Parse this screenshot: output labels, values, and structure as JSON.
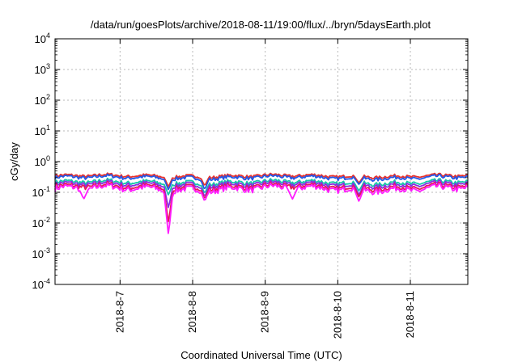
{
  "chart_data": {
    "type": "line",
    "title": "/data/run/goesPlots/archive/2018-08-11/19:00/flux/../bryn/5daysEarth.plot",
    "xlabel": "Coordinated Universal Time (UTC)",
    "ylabel": "cGy/day",
    "y_scale": "log",
    "ylim": [
      0.0001,
      10000
    ],
    "xlim": [
      "2018-08-06 02:30",
      "2018-08-11 19:00"
    ],
    "grid": true,
    "y_ticks": [
      {
        "base": "10",
        "exp": "-4",
        "value": 0.0001
      },
      {
        "base": "10",
        "exp": "-3",
        "value": 0.001
      },
      {
        "base": "10",
        "exp": "-2",
        "value": 0.01
      },
      {
        "base": "10",
        "exp": "-1",
        "value": 0.1
      },
      {
        "base": "10",
        "exp": "0",
        "value": 1
      },
      {
        "base": "10",
        "exp": "1",
        "value": 10
      },
      {
        "base": "10",
        "exp": "2",
        "value": 100
      },
      {
        "base": "10",
        "exp": "3",
        "value": 1000
      },
      {
        "base": "10",
        "exp": "4",
        "value": 10000
      }
    ],
    "x_ticks": [
      "2018-8-7",
      "2018-8-8",
      "2018-8-9",
      "2018-8-10",
      "2018-8-11"
    ],
    "x_tick_dates": [
      "2018-08-07 00:00",
      "2018-08-08 00:00",
      "2018-08-09 00:00",
      "2018-08-10 00:00",
      "2018-08-11 00:00"
    ],
    "series": [
      {
        "color": "#e8322d",
        "baseline": 0.34,
        "dips": [
          {
            "at": "2018-08-07 16:00",
            "value": 0.15
          },
          {
            "at": "2018-08-08 04:00",
            "value": 0.16
          },
          {
            "at": "2018-08-10 07:00",
            "value": 0.2
          }
        ]
      },
      {
        "color": "#2457e6",
        "baseline": 0.3,
        "dips": [
          {
            "at": "2018-08-07 16:00",
            "value": 0.12
          },
          {
            "at": "2018-08-08 04:00",
            "value": 0.12
          },
          {
            "at": "2018-08-10 07:00",
            "value": 0.18
          }
        ]
      },
      {
        "color": "#17c8a8",
        "baseline": 0.21,
        "dips": [
          {
            "at": "2018-08-07 16:00",
            "value": 0.08
          },
          {
            "at": "2018-08-08 04:00",
            "value": 0.09
          },
          {
            "at": "2018-08-10 07:00",
            "value": 0.11
          }
        ]
      },
      {
        "color": "#8a2be2",
        "baseline": 0.18,
        "dips": [
          {
            "at": "2018-08-07 16:00",
            "value": 0.03
          },
          {
            "at": "2018-08-08 04:00",
            "value": 0.07
          },
          {
            "at": "2018-08-10 07:00",
            "value": 0.08
          }
        ]
      },
      {
        "color": "#e6195a",
        "baseline": 0.15,
        "dips": [
          {
            "at": "2018-08-07 16:00",
            "value": 0.01
          },
          {
            "at": "2018-08-08 04:00",
            "value": 0.06
          },
          {
            "at": "2018-08-10 07:00",
            "value": 0.07
          }
        ]
      },
      {
        "color": "#ff1cff",
        "baseline": 0.13,
        "dips": [
          {
            "at": "2018-08-06 12:00",
            "value": 0.06
          },
          {
            "at": "2018-08-07 16:00",
            "value": 0.004
          },
          {
            "at": "2018-08-08 04:00",
            "value": 0.05
          },
          {
            "at": "2018-08-09 09:00",
            "value": 0.06
          },
          {
            "at": "2018-08-10 07:00",
            "value": 0.05
          }
        ]
      }
    ]
  }
}
